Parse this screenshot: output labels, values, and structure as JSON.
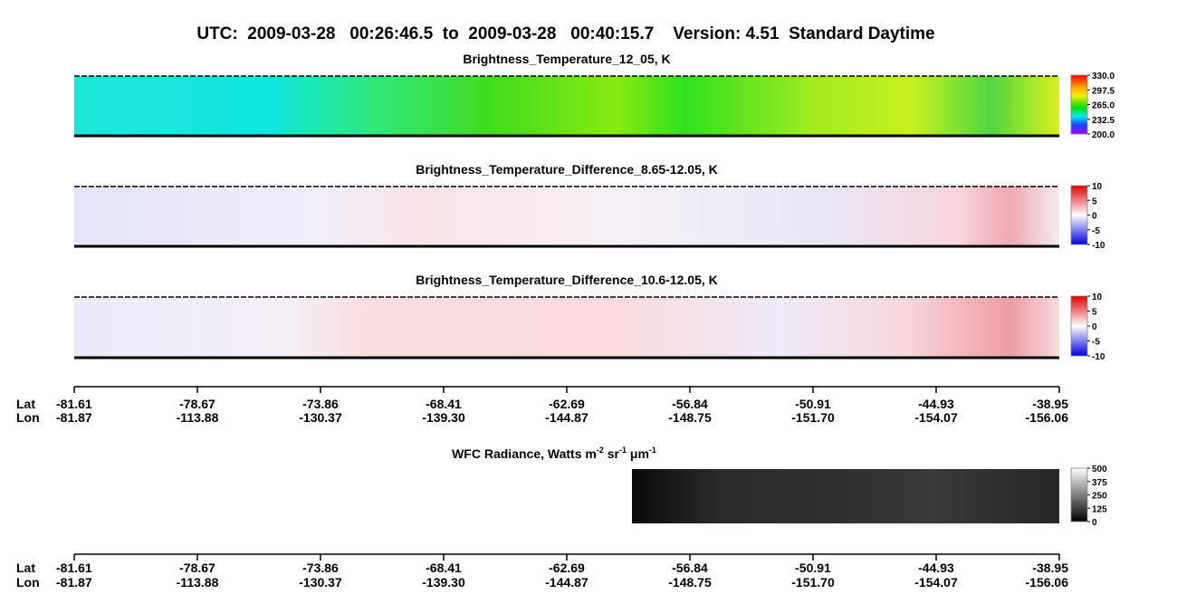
{
  "header": {
    "title": "UTC:  2009-03-28   00:26:46.5  to  2009-03-28   00:40:15.7    Version: 4.51  Standard Daytime"
  },
  "chart_data": [
    {
      "type": "heatmap",
      "title": "Brightness_Temperature_12_05, K",
      "colormap": "rainbow",
      "ylim": [
        200,
        330
      ],
      "yticks": [
        {
          "value": 330,
          "label": "330.0"
        },
        {
          "value": 297.5,
          "label": "297.5"
        },
        {
          "value": 265,
          "label": "265.0"
        },
        {
          "value": 232.5,
          "label": "232.5"
        },
        {
          "value": 200,
          "label": "200.0"
        }
      ]
    },
    {
      "type": "heatmap",
      "title": "Brightness_Temperature_Difference_8.65-12.05, K",
      "colormap": "diverging",
      "ylim": [
        -10,
        10
      ],
      "yticks": [
        10,
        5,
        0,
        -5,
        -10
      ]
    },
    {
      "type": "heatmap",
      "title": "Brightness_Temperature_Difference_10.6-12.05, K",
      "colormap": "diverging",
      "ylim": [
        -10,
        10
      ],
      "yticks": [
        10,
        5,
        0,
        -5,
        -10
      ]
    },
    {
      "type": "heatmap",
      "title_parts": [
        "WFC Radiance, Watts m",
        "-2",
        " sr",
        "-1",
        " μm",
        "-1"
      ],
      "colormap": "gray",
      "ylim": [
        0,
        500
      ],
      "yticks": [
        500,
        375,
        250,
        125,
        0
      ]
    }
  ],
  "axis": {
    "lat_name": "Lat",
    "lon_name": "Lon",
    "lat": [
      "-81.61",
      "-78.67",
      "-73.86",
      "-68.41",
      "-62.69",
      "-56.84",
      "-50.91",
      "-44.93",
      "-38.95"
    ],
    "lon": [
      "-81.87",
      "-113.88",
      "-130.37",
      "-139.30",
      "-144.87",
      "-148.75",
      "-151.70",
      "-154.07",
      "-156.06"
    ]
  }
}
